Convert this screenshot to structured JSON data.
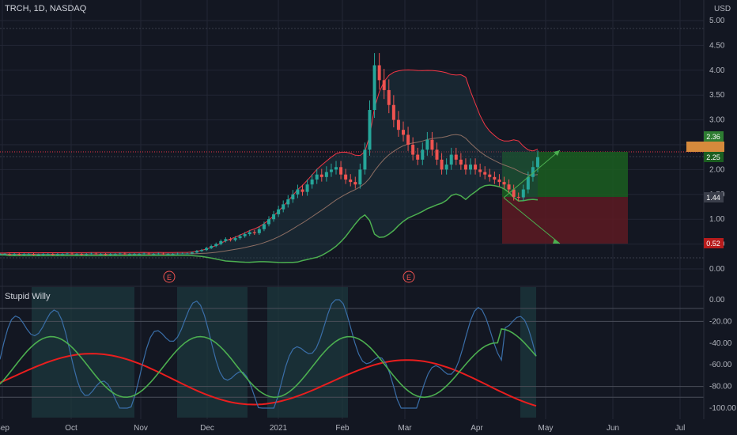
{
  "header": {
    "symbol_line": "TRCH, 1D, NASDAQ",
    "currency": "USD",
    "indicator_name": "Stupid Willy"
  },
  "colors": {
    "background": "#131722",
    "grid": "#232735",
    "candle_up": "#26a69a",
    "candle_down": "#ef5350",
    "bb_upper": "#f23645",
    "bb_lower": "#4caf50",
    "bb_mid": "#8d6e63",
    "bb_fill": "#1e3a45",
    "osc_blue": "#3a6ea8",
    "osc_green": "#4caf50",
    "osc_red": "#e91e1e",
    "shade": "#1c3b3f",
    "long_zone_green": "#1b5e20",
    "short_zone_red": "#5d1a22",
    "arrow_green": "#4caf50"
  },
  "chart_data": [
    {
      "type": "candlestick",
      "title": "TRCH, 1D, NASDAQ",
      "y_unit": "USD",
      "ylim": [
        -0.2,
        5.2
      ],
      "y_ticks": [
        "5.00",
        "4.50",
        "4.00",
        "3.50",
        "3.00",
        "2.50",
        "2.00",
        "1.50",
        "1.00",
        "0.50",
        "0.00"
      ],
      "x_ticks": [
        "Sep",
        "Oct",
        "Nov",
        "Dec",
        "2021",
        "Feb",
        "Mar",
        "Apr",
        "May",
        "Jun",
        "Jul"
      ],
      "price_tags": [
        "2.36",
        "2.25",
        "1.44",
        "0.52"
      ],
      "earnings_markers": [
        "E",
        "E"
      ],
      "approx_close": [
        0.3,
        0.3,
        0.29,
        0.3,
        0.29,
        0.3,
        0.3,
        0.29,
        0.29,
        0.3,
        0.3,
        0.29,
        0.3,
        0.3,
        0.31,
        0.3,
        0.3,
        0.29,
        0.3,
        0.31,
        0.3,
        0.3,
        0.29,
        0.3,
        0.3,
        0.31,
        0.3,
        0.3,
        0.3,
        0.3,
        0.31,
        0.3,
        0.3,
        0.31,
        0.3,
        0.3,
        0.3,
        0.31,
        0.31,
        0.31,
        0.33,
        0.36,
        0.38,
        0.42,
        0.46,
        0.5,
        0.56,
        0.6,
        0.58,
        0.62,
        0.66,
        0.7,
        0.74,
        0.72,
        0.8,
        0.9,
        1.0,
        1.1,
        1.2,
        1.3,
        1.4,
        1.5,
        1.6,
        1.55,
        1.7,
        1.8,
        1.9,
        1.85,
        1.95,
        2.0,
        2.05,
        1.9,
        1.8,
        1.75,
        1.7,
        2.0,
        2.4,
        3.2,
        4.1,
        3.8,
        3.6,
        3.3,
        3.0,
        2.8,
        2.7,
        2.5,
        2.3,
        2.2,
        2.4,
        2.6,
        2.4,
        2.2,
        2.0,
        2.1,
        2.3,
        2.2,
        2.1,
        2.0,
        2.1,
        2.0,
        1.95,
        1.9,
        1.85,
        1.8,
        1.75,
        1.7,
        1.6,
        1.45,
        1.44,
        1.6,
        1.85,
        2.05,
        2.25
      ]
    },
    {
      "type": "line",
      "title": "Stupid Willy",
      "ylim": [
        -105,
        5
      ],
      "y_ticks": [
        "0.00",
        "-20.00",
        "-40.00",
        "-60.00",
        "-80.00",
        "-100.00"
      ],
      "series": []
    }
  ]
}
